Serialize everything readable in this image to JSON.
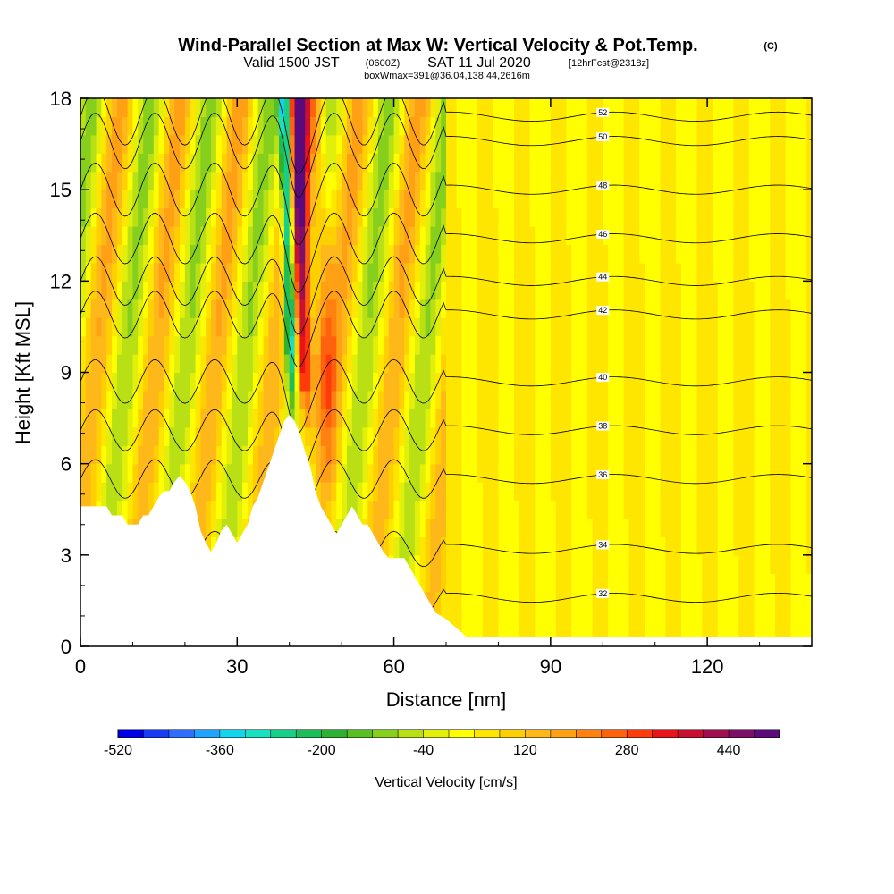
{
  "title": {
    "main": "Wind-Parallel Section at Max W: Vertical Velocity & Pot.Temp.",
    "copyright": "(C)",
    "valid_prefix": "Valid 1500 JST",
    "valid_utc": "(0600Z)",
    "valid_date": "SAT 11 Jul 2020",
    "forecast": "[12hrFcst@2318z]",
    "box_info": "boxWmax=391@36.04,138.44,2616m"
  },
  "chart_data": {
    "type": "heatmap",
    "xlabel": "Distance [nm]",
    "ylabel": "Height [Kft MSL]",
    "xlim": [
      0,
      140
    ],
    "ylim": [
      0,
      18
    ],
    "x_ticks": [
      0,
      30,
      60,
      90,
      120
    ],
    "y_ticks": [
      0,
      3,
      6,
      9,
      12,
      15,
      18
    ],
    "colorbar": {
      "title": "Vertical Velocity [cm/s]",
      "tick_labels": [
        "-520",
        "-360",
        "-200",
        "-40",
        "120",
        "280",
        "440"
      ],
      "min": -520,
      "max": 520,
      "step": 40,
      "colors": [
        "#0000e6",
        "#1a3cf5",
        "#2f6fff",
        "#1fa4ff",
        "#12d6ee",
        "#18e0c0",
        "#17cf86",
        "#1ebd5a",
        "#2db132",
        "#58c022",
        "#86cf1c",
        "#b8e015",
        "#e2ef0a",
        "#ffff00",
        "#ffe600",
        "#ffd000",
        "#ffb81a",
        "#ffa015",
        "#ff8210",
        "#ff620d",
        "#ff3a0b",
        "#e8141a",
        "#c81030",
        "#a01050",
        "#7c1068",
        "#5a0a7a"
      ]
    },
    "terrain_profile": [
      [
        0,
        4.6
      ],
      [
        5,
        4.6
      ],
      [
        6,
        4.3
      ],
      [
        8,
        4.3
      ],
      [
        9,
        4.0
      ],
      [
        11,
        4.0
      ],
      [
        12,
        4.3
      ],
      [
        13,
        4.3
      ],
      [
        14,
        4.6
      ],
      [
        15,
        4.9
      ],
      [
        16,
        5.1
      ],
      [
        17,
        5.1
      ],
      [
        18,
        5.4
      ],
      [
        19,
        5.6
      ],
      [
        20,
        5.4
      ],
      [
        21,
        5.1
      ],
      [
        22,
        4.6
      ],
      [
        23,
        3.8
      ],
      [
        24,
        3.4
      ],
      [
        25,
        3.1
      ],
      [
        26,
        3.4
      ],
      [
        27,
        3.8
      ],
      [
        28,
        4.0
      ],
      [
        29,
        3.7
      ],
      [
        30,
        3.4
      ],
      [
        31,
        3.7
      ],
      [
        32,
        4.0
      ],
      [
        33,
        4.6
      ],
      [
        34,
        4.9
      ],
      [
        35,
        5.4
      ],
      [
        36,
        5.9
      ],
      [
        37,
        6.4
      ],
      [
        38,
        6.9
      ],
      [
        39,
        7.4
      ],
      [
        40,
        7.6
      ],
      [
        41,
        7.4
      ],
      [
        42,
        7.0
      ],
      [
        43,
        6.4
      ],
      [
        44,
        5.9
      ],
      [
        45,
        5.1
      ],
      [
        46,
        4.6
      ],
      [
        47,
        4.3
      ],
      [
        48,
        4.0
      ],
      [
        49,
        3.7
      ],
      [
        50,
        4.0
      ],
      [
        51,
        4.3
      ],
      [
        52,
        4.6
      ],
      [
        53,
        4.3
      ],
      [
        54,
        4.0
      ],
      [
        55,
        4.0
      ],
      [
        56,
        3.7
      ],
      [
        57,
        3.4
      ],
      [
        58,
        3.1
      ],
      [
        59,
        2.9
      ],
      [
        62,
        2.9
      ],
      [
        63,
        2.6
      ],
      [
        64,
        2.3
      ],
      [
        65,
        2.0
      ],
      [
        66,
        1.7
      ],
      [
        67,
        1.4
      ],
      [
        68,
        1.1
      ],
      [
        70,
        0.9
      ],
      [
        72,
        0.6
      ],
      [
        74,
        0.3
      ],
      [
        140,
        0.3
      ]
    ],
    "theta_contours": [
      {
        "label": "32",
        "base": 1.6
      },
      {
        "label": "34",
        "base": 3.2
      },
      {
        "label": "36",
        "base": 5.5
      },
      {
        "label": "38",
        "base": 7.1
      },
      {
        "label": "40",
        "base": 8.7
      },
      {
        "label": "42",
        "base": 10.9
      },
      {
        "label": "44",
        "base": 12.0
      },
      {
        "label": "46",
        "base": 13.4
      },
      {
        "label": "48",
        "base": 15.0
      },
      {
        "label": "50",
        "base": 16.6
      },
      {
        "label": "52",
        "base": 17.4
      }
    ]
  }
}
